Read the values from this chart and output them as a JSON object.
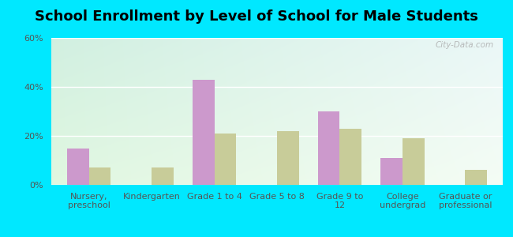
{
  "title": "School Enrollment by Level of School for Male Students",
  "categories": [
    "Nursery,\npreschool",
    "Kindergarten",
    "Grade 1 to 4",
    "Grade 5 to 8",
    "Grade 9 to\n12",
    "College\nundergrad",
    "Graduate or\nprofessional"
  ],
  "stantonsburg": [
    15,
    0,
    43,
    0,
    30,
    11,
    0
  ],
  "north_carolina": [
    7,
    7,
    21,
    22,
    23,
    19,
    6
  ],
  "stantonsburg_color": "#cc99cc",
  "north_carolina_color": "#c8cc99",
  "bg_outer": "#00e8ff",
  "bg_plot_topleft": "#d4f0e0",
  "bg_plot_topright": "#e8f4f8",
  "bg_plot_bottom": "#e8f8e8",
  "ylim": [
    0,
    60
  ],
  "yticks": [
    0,
    20,
    40,
    60
  ],
  "ytick_labels": [
    "0%",
    "20%",
    "40%",
    "60%"
  ],
  "bar_width": 0.35,
  "title_fontsize": 13,
  "legend_fontsize": 9,
  "tick_fontsize": 8,
  "watermark": "City-Data.com",
  "legend_text_color": "#444444"
}
